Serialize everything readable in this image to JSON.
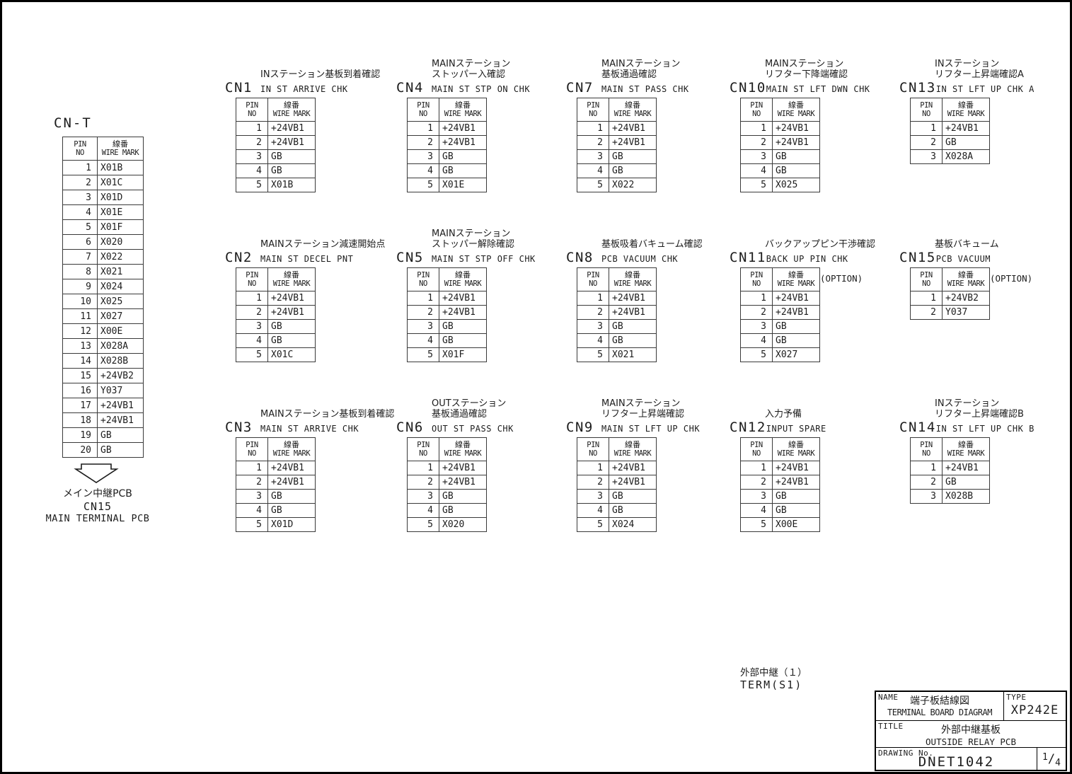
{
  "table_header": {
    "pin_line1": "PIN",
    "pin_line2": "NO",
    "wire_jp": "線番",
    "wire_en": "WIRE MARK"
  },
  "cn_t": {
    "label": "CN-T",
    "pins": [
      [
        "1",
        "X01B"
      ],
      [
        "2",
        "X01C"
      ],
      [
        "3",
        "X01D"
      ],
      [
        "4",
        "X01E"
      ],
      [
        "5",
        "X01F"
      ],
      [
        "6",
        "X020"
      ],
      [
        "7",
        "X022"
      ],
      [
        "8",
        "X021"
      ],
      [
        "9",
        "X024"
      ],
      [
        "10",
        "X025"
      ],
      [
        "11",
        "X027"
      ],
      [
        "12",
        "X00E"
      ],
      [
        "13",
        "X028A"
      ],
      [
        "14",
        "X028B"
      ],
      [
        "15",
        "+24VB2"
      ],
      [
        "16",
        "Y037"
      ],
      [
        "17",
        "+24VB1"
      ],
      [
        "18",
        "+24VB1"
      ],
      [
        "19",
        "GB"
      ],
      [
        "20",
        "GB"
      ]
    ]
  },
  "main_terminal_note": {
    "line1": "メイン中継PCB",
    "line2": "CN15",
    "line3": "MAIN TERMINAL PCB"
  },
  "term_note": {
    "jp": "外部中継（１）",
    "en": "TERM(S1)"
  },
  "connectors": [
    {
      "id": "CN1",
      "col": 1,
      "row": 1,
      "jp": [
        "INステーション基板到着確認"
      ],
      "en": "IN ST ARRIVE CHK",
      "option": "",
      "pins": [
        [
          "1",
          "+24VB1"
        ],
        [
          "2",
          "+24VB1"
        ],
        [
          "3",
          "GB"
        ],
        [
          "4",
          "GB"
        ],
        [
          "5",
          "X01B"
        ]
      ]
    },
    {
      "id": "CN4",
      "col": 2,
      "row": 1,
      "jp": [
        "MAINステーション",
        "ストッパー入確認"
      ],
      "en": "MAIN ST STP ON CHK",
      "option": "",
      "pins": [
        [
          "1",
          "+24VB1"
        ],
        [
          "2",
          "+24VB1"
        ],
        [
          "3",
          "GB"
        ],
        [
          "4",
          "GB"
        ],
        [
          "5",
          "X01E"
        ]
      ]
    },
    {
      "id": "CN7",
      "col": 3,
      "row": 1,
      "jp": [
        "MAINステーション",
        "基板通過確認"
      ],
      "en": "MAIN ST PASS CHK",
      "option": "",
      "pins": [
        [
          "1",
          "+24VB1"
        ],
        [
          "2",
          "+24VB1"
        ],
        [
          "3",
          "GB"
        ],
        [
          "4",
          "GB"
        ],
        [
          "5",
          "X022"
        ]
      ]
    },
    {
      "id": "CN10",
      "col": 4,
      "row": 1,
      "jp": [
        "MAINステーション",
        "リフター下降端確認"
      ],
      "en": "MAIN ST LFT DWN CHK",
      "option": "",
      "pins": [
        [
          "1",
          "+24VB1"
        ],
        [
          "2",
          "+24VB1"
        ],
        [
          "3",
          "GB"
        ],
        [
          "4",
          "GB"
        ],
        [
          "5",
          "X025"
        ]
      ]
    },
    {
      "id": "CN13",
      "col": 5,
      "row": 1,
      "jp": [
        "INステーション",
        "リフター上昇端確認A"
      ],
      "en": "IN ST LFT UP CHK A",
      "option": "",
      "pins": [
        [
          "1",
          "+24VB1"
        ],
        [
          "2",
          "GB"
        ],
        [
          "3",
          "X028A"
        ]
      ]
    },
    {
      "id": "CN2",
      "col": 1,
      "row": 2,
      "jp": [
        "MAINステーション減速開始点"
      ],
      "en": "MAIN ST DECEL PNT",
      "option": "",
      "pins": [
        [
          "1",
          "+24VB1"
        ],
        [
          "2",
          "+24VB1"
        ],
        [
          "3",
          "GB"
        ],
        [
          "4",
          "GB"
        ],
        [
          "5",
          "X01C"
        ]
      ]
    },
    {
      "id": "CN5",
      "col": 2,
      "row": 2,
      "jp": [
        "MAINステーション",
        "ストッパー解除確認"
      ],
      "en": "MAIN ST STP OFF CHK",
      "option": "",
      "pins": [
        [
          "1",
          "+24VB1"
        ],
        [
          "2",
          "+24VB1"
        ],
        [
          "3",
          "GB"
        ],
        [
          "4",
          "GB"
        ],
        [
          "5",
          "X01F"
        ]
      ]
    },
    {
      "id": "CN8",
      "col": 3,
      "row": 2,
      "jp": [
        "基板吸着バキューム確認"
      ],
      "en": "PCB VACUUM CHK",
      "option": "",
      "pins": [
        [
          "1",
          "+24VB1"
        ],
        [
          "2",
          "+24VB1"
        ],
        [
          "3",
          "GB"
        ],
        [
          "4",
          "GB"
        ],
        [
          "5",
          "X021"
        ]
      ]
    },
    {
      "id": "CN11",
      "col": 4,
      "row": 2,
      "jp": [
        "バックアップピン干渉確認"
      ],
      "en": "BACK UP PIN CHK",
      "option": "(OPTION)",
      "pins": [
        [
          "1",
          "+24VB1"
        ],
        [
          "2",
          "+24VB1"
        ],
        [
          "3",
          "GB"
        ],
        [
          "4",
          "GB"
        ],
        [
          "5",
          "X027"
        ]
      ]
    },
    {
      "id": "CN15",
      "col": 5,
      "row": 2,
      "jp": [
        "基板バキューム"
      ],
      "en": "PCB VACUUM",
      "option": "(OPTION)",
      "pins": [
        [
          "1",
          "+24VB2"
        ],
        [
          "2",
          "Y037"
        ]
      ]
    },
    {
      "id": "CN3",
      "col": 1,
      "row": 3,
      "jp": [
        "MAINステーション基板到着確認"
      ],
      "en": "MAIN ST ARRIVE CHK",
      "option": "",
      "pins": [
        [
          "1",
          "+24VB1"
        ],
        [
          "2",
          "+24VB1"
        ],
        [
          "3",
          "GB"
        ],
        [
          "4",
          "GB"
        ],
        [
          "5",
          "X01D"
        ]
      ]
    },
    {
      "id": "CN6",
      "col": 2,
      "row": 3,
      "jp": [
        "OUTステーション",
        "基板通過確認"
      ],
      "en": "OUT ST PASS CHK",
      "option": "",
      "pins": [
        [
          "1",
          "+24VB1"
        ],
        [
          "2",
          "+24VB1"
        ],
        [
          "3",
          "GB"
        ],
        [
          "4",
          "GB"
        ],
        [
          "5",
          "X020"
        ]
      ]
    },
    {
      "id": "CN9",
      "col": 3,
      "row": 3,
      "jp": [
        "MAINステーション",
        "リフター上昇端確認"
      ],
      "en": "MAIN ST LFT UP CHK",
      "option": "",
      "pins": [
        [
          "1",
          "+24VB1"
        ],
        [
          "2",
          "+24VB1"
        ],
        [
          "3",
          "GB"
        ],
        [
          "4",
          "GB"
        ],
        [
          "5",
          "X024"
        ]
      ]
    },
    {
      "id": "CN12",
      "col": 4,
      "row": 3,
      "jp": [
        "入力予備"
      ],
      "en": "INPUT SPARE",
      "option": "",
      "pins": [
        [
          "1",
          "+24VB1"
        ],
        [
          "2",
          "+24VB1"
        ],
        [
          "3",
          "GB"
        ],
        [
          "4",
          "GB"
        ],
        [
          "5",
          "X00E"
        ]
      ]
    },
    {
      "id": "CN14",
      "col": 5,
      "row": 3,
      "jp": [
        "INステーション",
        "リフター上昇端確認B"
      ],
      "en": "IN ST LFT UP CHK B",
      "option": "",
      "pins": [
        [
          "1",
          "+24VB1"
        ],
        [
          "2",
          "GB"
        ],
        [
          "3",
          "X028B"
        ]
      ]
    }
  ],
  "title_block": {
    "name_label": "NAME",
    "name_jp": "端子板結線図",
    "name_en": "TERMINAL BOARD DIAGRAM",
    "type_label": "TYPE",
    "type_value": "XP242E",
    "title_label": "TITLE",
    "title_jp": "外部中継基板",
    "title_en": "OUTSIDE RELAY PCB",
    "drawing_label": "DRAWING No.",
    "drawing_value": "DNET1042",
    "page_numerator": "1",
    "page_denominator": "4"
  }
}
